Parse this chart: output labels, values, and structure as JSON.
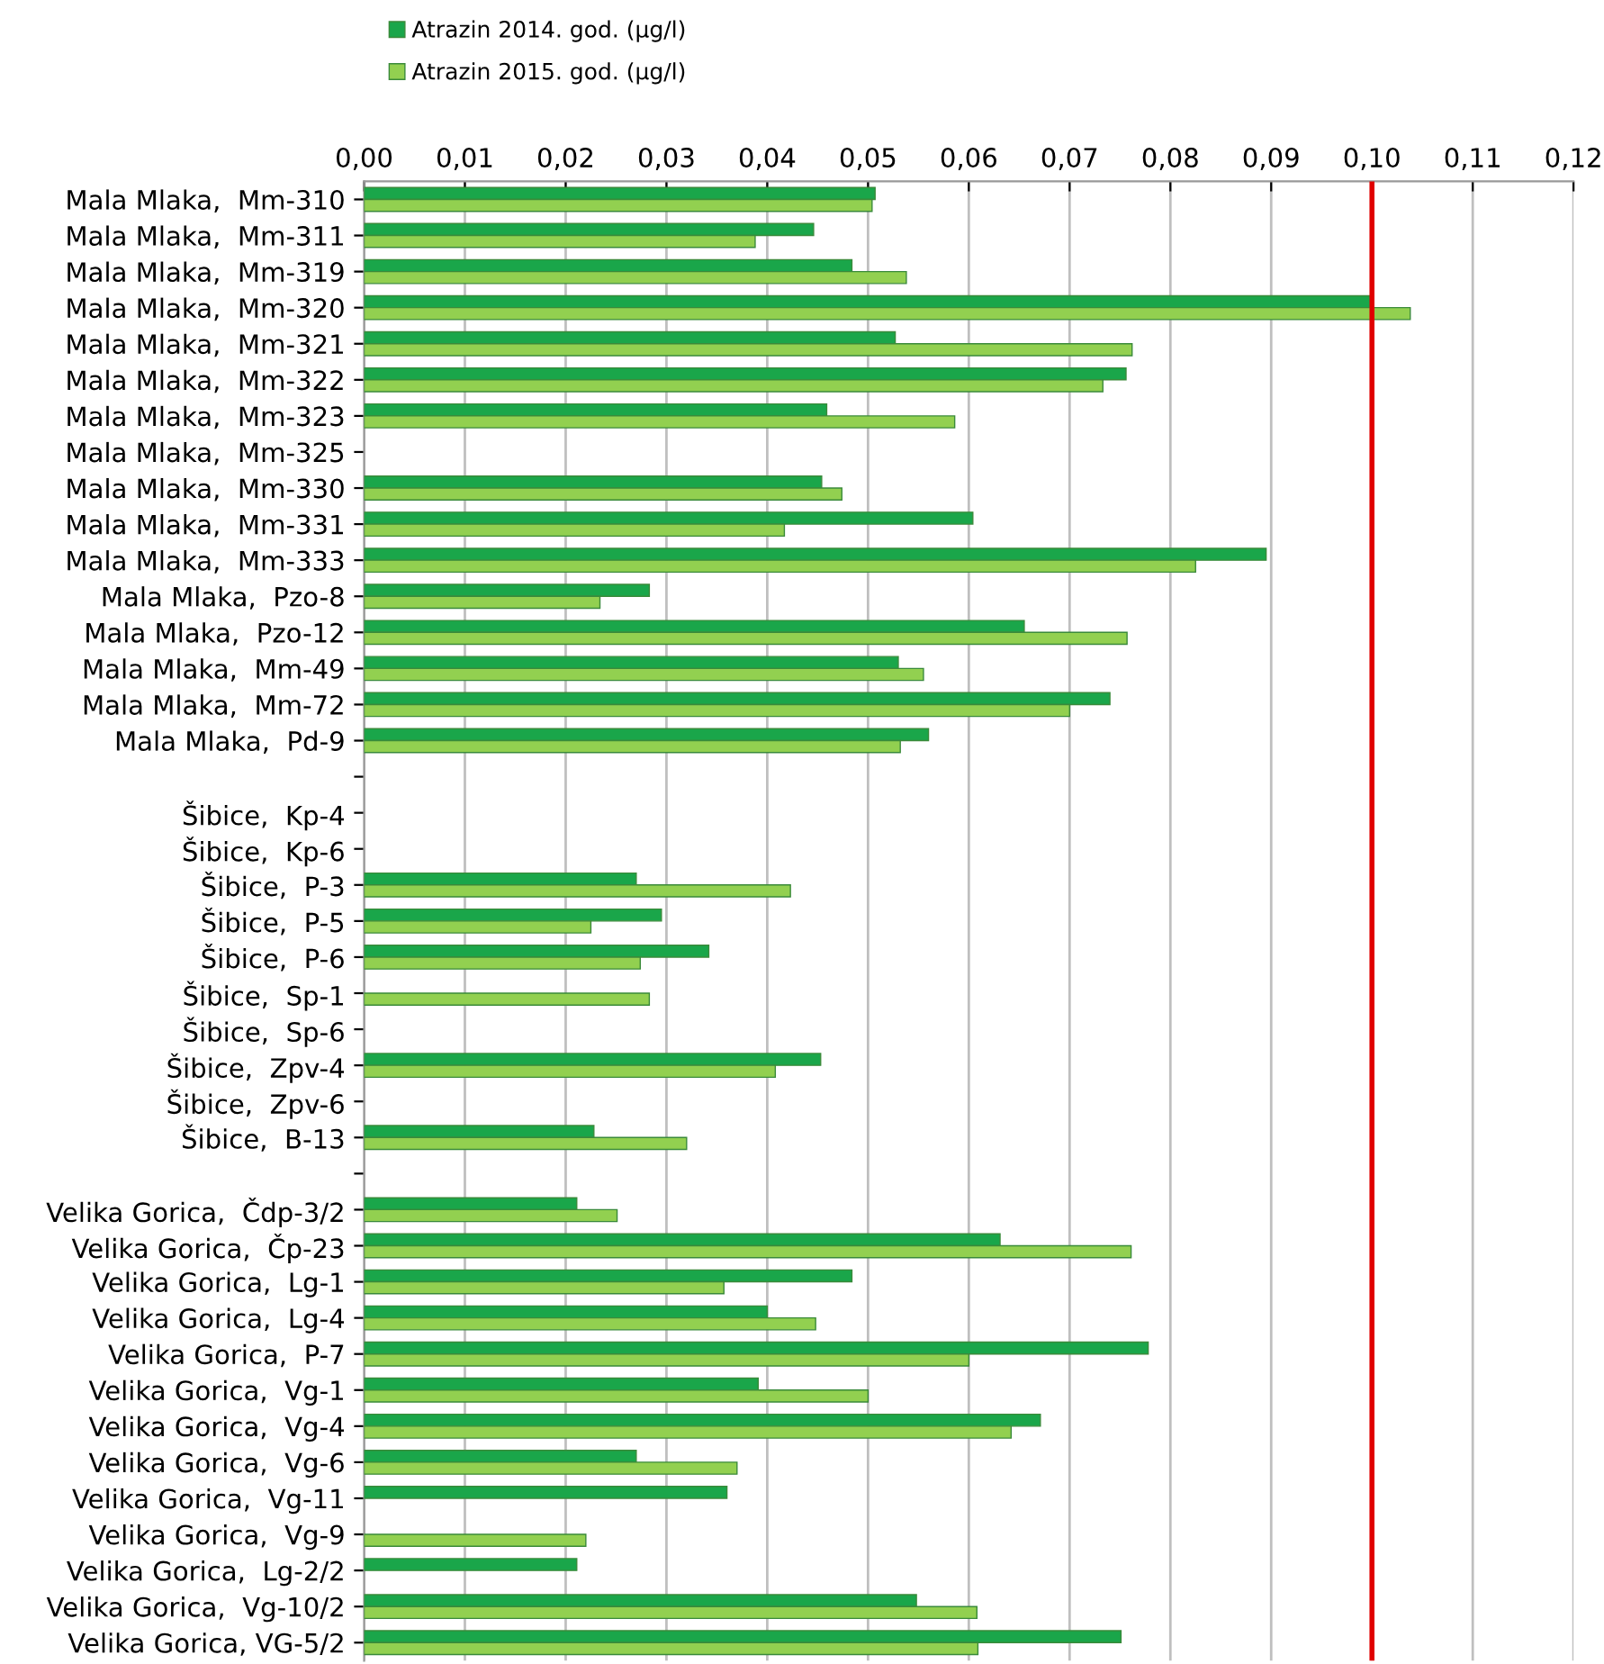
{
  "chart_data": {
    "type": "bar",
    "orientation": "horizontal",
    "categories": [
      "Mala Mlaka,  Mm-310",
      "Mala Mlaka,  Mm-311",
      "Mala Mlaka,  Mm-319",
      "Mala Mlaka,  Mm-320",
      "Mala Mlaka,  Mm-321",
      "Mala Mlaka,  Mm-322",
      "Mala Mlaka,  Mm-323",
      "Mala Mlaka,  Mm-325",
      "Mala Mlaka,  Mm-330",
      "Mala Mlaka,  Mm-331",
      "Mala Mlaka,  Mm-333",
      "Mala Mlaka,  Pzo-8",
      "Mala Mlaka,  Pzo-12",
      "Mala Mlaka,  Mm-49",
      "Mala Mlaka,  Mm-72",
      "Mala Mlaka,  Pd-9",
      null,
      "Šibice,  Kp-4",
      "Šibice,  Kp-6",
      "Šibice,  P-3",
      "Šibice,  P-5",
      "Šibice,  P-6",
      "Šibice,  Sp-1",
      "Šibice,  Sp-6",
      "Šibice,  Zpv-4",
      "Šibice,  Zpv-6",
      "Šibice,  B-13",
      null,
      "Velika Gorica,  Čdp-3/2",
      "Velika Gorica,  Čp-23",
      "Velika Gorica,  Lg-1",
      "Velika Gorica,  Lg-4",
      "Velika Gorica,  P-7",
      "Velika Gorica,  Vg-1",
      "Velika Gorica,  Vg-4",
      "Velika Gorica,  Vg-6",
      "Velika Gorica,  Vg-11",
      "Velika Gorica,  Vg-9",
      "Velika Gorica,  Lg-2/2",
      "Velika Gorica,  Vg-10/2",
      "Velika Gorica, VG-5/2"
    ],
    "series": [
      {
        "name": "Atrazin 2014. god. (µg/l)",
        "color": "#1aa64a",
        "values": [
          0.0507,
          0.0446,
          0.0484,
          0.1,
          0.0527,
          0.0756,
          0.0459,
          null,
          0.0454,
          0.0604,
          0.0895,
          0.0283,
          0.0655,
          0.053,
          0.074,
          0.056,
          null,
          null,
          null,
          0.027,
          0.0295,
          0.0342,
          null,
          null,
          0.0453,
          null,
          0.0228,
          null,
          0.0211,
          0.0631,
          0.0484,
          0.04,
          0.0778,
          0.0391,
          0.0671,
          0.027,
          0.036,
          null,
          0.0211,
          0.0548,
          0.0751
        ]
      },
      {
        "name": "Atrazin 2015. god. (µg/l)",
        "color": "#92d050",
        "values": [
          0.0504,
          0.0388,
          0.0538,
          0.1038,
          0.0762,
          0.0733,
          0.0586,
          null,
          0.0474,
          0.0417,
          0.0825,
          0.0234,
          0.0757,
          0.0555,
          0.07,
          0.0532,
          null,
          null,
          null,
          0.0423,
          0.0225,
          0.0274,
          0.0283,
          null,
          0.0408,
          null,
          0.032,
          null,
          0.0251,
          0.0761,
          0.0357,
          0.0448,
          0.06,
          0.05,
          0.0642,
          0.037,
          null,
          0.022,
          null,
          0.0608,
          0.0609
        ]
      }
    ],
    "xlim": [
      0,
      0.12
    ],
    "xticks": [
      {
        "value": 0,
        "label": "0,00"
      },
      {
        "value": 0.01,
        "label": "0,01"
      },
      {
        "value": 0.02,
        "label": "0,02"
      },
      {
        "value": 0.03,
        "label": "0,03"
      },
      {
        "value": 0.04,
        "label": "0,04"
      },
      {
        "value": 0.05,
        "label": "0,05"
      },
      {
        "value": 0.06,
        "label": "0,06"
      },
      {
        "value": 0.07,
        "label": "0,07"
      },
      {
        "value": 0.08,
        "label": "0,08"
      },
      {
        "value": 0.09,
        "label": "0,09"
      },
      {
        "value": 0.1,
        "label": "0,10"
      },
      {
        "value": 0.11,
        "label": "0,11"
      },
      {
        "value": 0.12,
        "label": "0,12"
      }
    ],
    "ref_lines": [
      {
        "axis": "x",
        "value": 0.1,
        "color": "#e00000"
      }
    ],
    "grid": "x",
    "legend": "top"
  }
}
